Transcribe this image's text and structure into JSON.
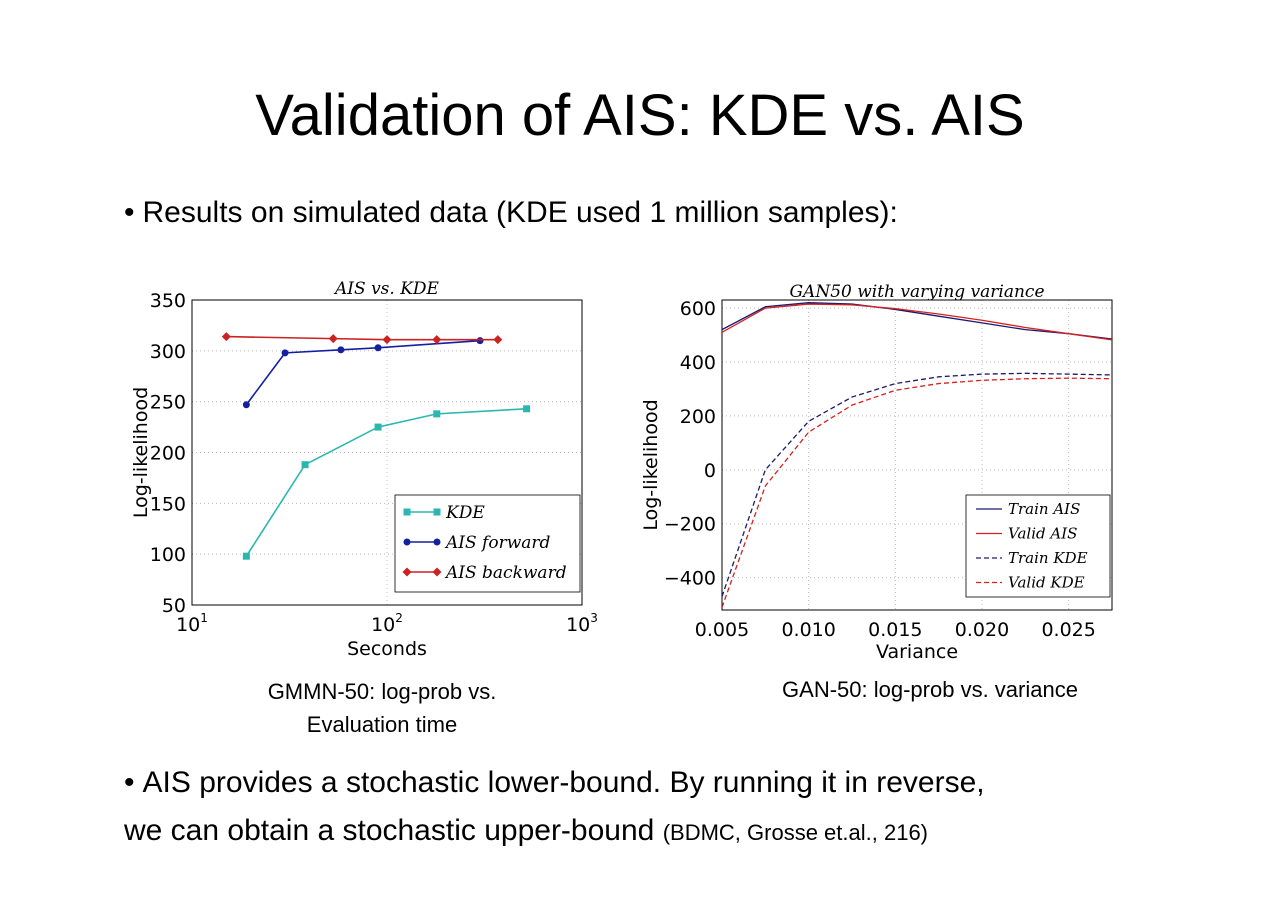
{
  "slide": {
    "title": "Validation of AIS: KDE vs. AIS",
    "bullet1": "Results on simulated data (KDE used 1 million samples):",
    "bullet2_line1": "AIS provides a stochastic lower-bound. By running it in reverse,",
    "bullet2_line2": "we can obtain a stochastic upper-bound",
    "bullet2_ref": "(BDMC, Grosse et.al., 216)",
    "bullet_symbol": "•",
    "caption_left_line1": "GMMN-50: log-prob vs.",
    "caption_left_line2": "Evaluation time",
    "caption_right": "GAN-50: log-prob vs. variance"
  },
  "chart_data": [
    {
      "type": "line",
      "title": "AIS vs. KDE",
      "xlabel": "Seconds",
      "ylabel": "Log-likelihood",
      "xscale": "log",
      "xlim": [
        10,
        1000
      ],
      "ylim": [
        50,
        350
      ],
      "xticks": [
        {
          "value": 10,
          "base": "10",
          "exp": "1"
        },
        {
          "value": 100,
          "base": "10",
          "exp": "2"
        },
        {
          "value": 1000,
          "base": "10",
          "exp": "3"
        }
      ],
      "yticks": [
        50,
        100,
        150,
        200,
        250,
        300,
        350
      ],
      "grid": true,
      "legend": "lower-right",
      "series": [
        {
          "name": "KDE",
          "color": "#2ab7b0",
          "marker": "square",
          "x": [
            19,
            38,
            90,
            180,
            520
          ],
          "y": [
            98,
            188,
            225,
            238,
            243
          ]
        },
        {
          "name": "AIS forward",
          "color": "#1420a0",
          "marker": "circle",
          "x": [
            19,
            30,
            58,
            90,
            300
          ],
          "y": [
            247,
            298,
            301,
            303,
            310
          ]
        },
        {
          "name": "AIS backward",
          "color": "#cc2222",
          "marker": "diamond",
          "x": [
            15,
            53,
            100,
            180,
            370
          ],
          "y": [
            314,
            312,
            311,
            311,
            311
          ]
        }
      ]
    },
    {
      "type": "line",
      "title": "GAN50 with varying variance",
      "xlabel": "Variance",
      "ylabel": "Log-likelihood",
      "xlim": [
        0.005,
        0.0275
      ],
      "ylim": [
        -520,
        630
      ],
      "xticks": [
        "0.005",
        "0.010",
        "0.015",
        "0.020",
        "0.025"
      ],
      "xtick_values": [
        0.005,
        0.01,
        0.015,
        0.02,
        0.025
      ],
      "yticks": [
        600,
        400,
        200,
        0,
        -200,
        -400
      ],
      "ytick_labels": [
        "600",
        "400",
        "200",
        "0",
        "−200",
        "−400"
      ],
      "grid": true,
      "legend": "lower-right",
      "series": [
        {
          "name": "Train AIS",
          "color": "#1a1a6e",
          "style": "solid",
          "x": [
            0.005,
            0.0075,
            0.01,
            0.0125,
            0.015,
            0.0175,
            0.02,
            0.0225,
            0.025,
            0.0275
          ],
          "y": [
            520,
            605,
            620,
            615,
            595,
            570,
            545,
            520,
            505,
            485
          ]
        },
        {
          "name": "Valid AIS",
          "color": "#d62020",
          "style": "solid",
          "x": [
            0.005,
            0.0075,
            0.01,
            0.0125,
            0.015,
            0.0175,
            0.02,
            0.0225,
            0.025,
            0.0275
          ],
          "y": [
            510,
            600,
            615,
            612,
            598,
            578,
            555,
            528,
            505,
            482
          ]
        },
        {
          "name": "Train KDE",
          "color": "#1a1a6e",
          "style": "dashed",
          "x": [
            0.005,
            0.0075,
            0.01,
            0.0125,
            0.015,
            0.0175,
            0.02,
            0.0225,
            0.025,
            0.0275
          ],
          "y": [
            -470,
            0,
            180,
            270,
            320,
            345,
            355,
            358,
            355,
            352
          ]
        },
        {
          "name": "Valid KDE",
          "color": "#d62020",
          "style": "dashed",
          "x": [
            0.005,
            0.0075,
            0.01,
            0.0125,
            0.015,
            0.0175,
            0.02,
            0.0225,
            0.025,
            0.0275
          ],
          "y": [
            -510,
            -60,
            140,
            240,
            295,
            320,
            332,
            338,
            340,
            338
          ]
        }
      ]
    }
  ]
}
